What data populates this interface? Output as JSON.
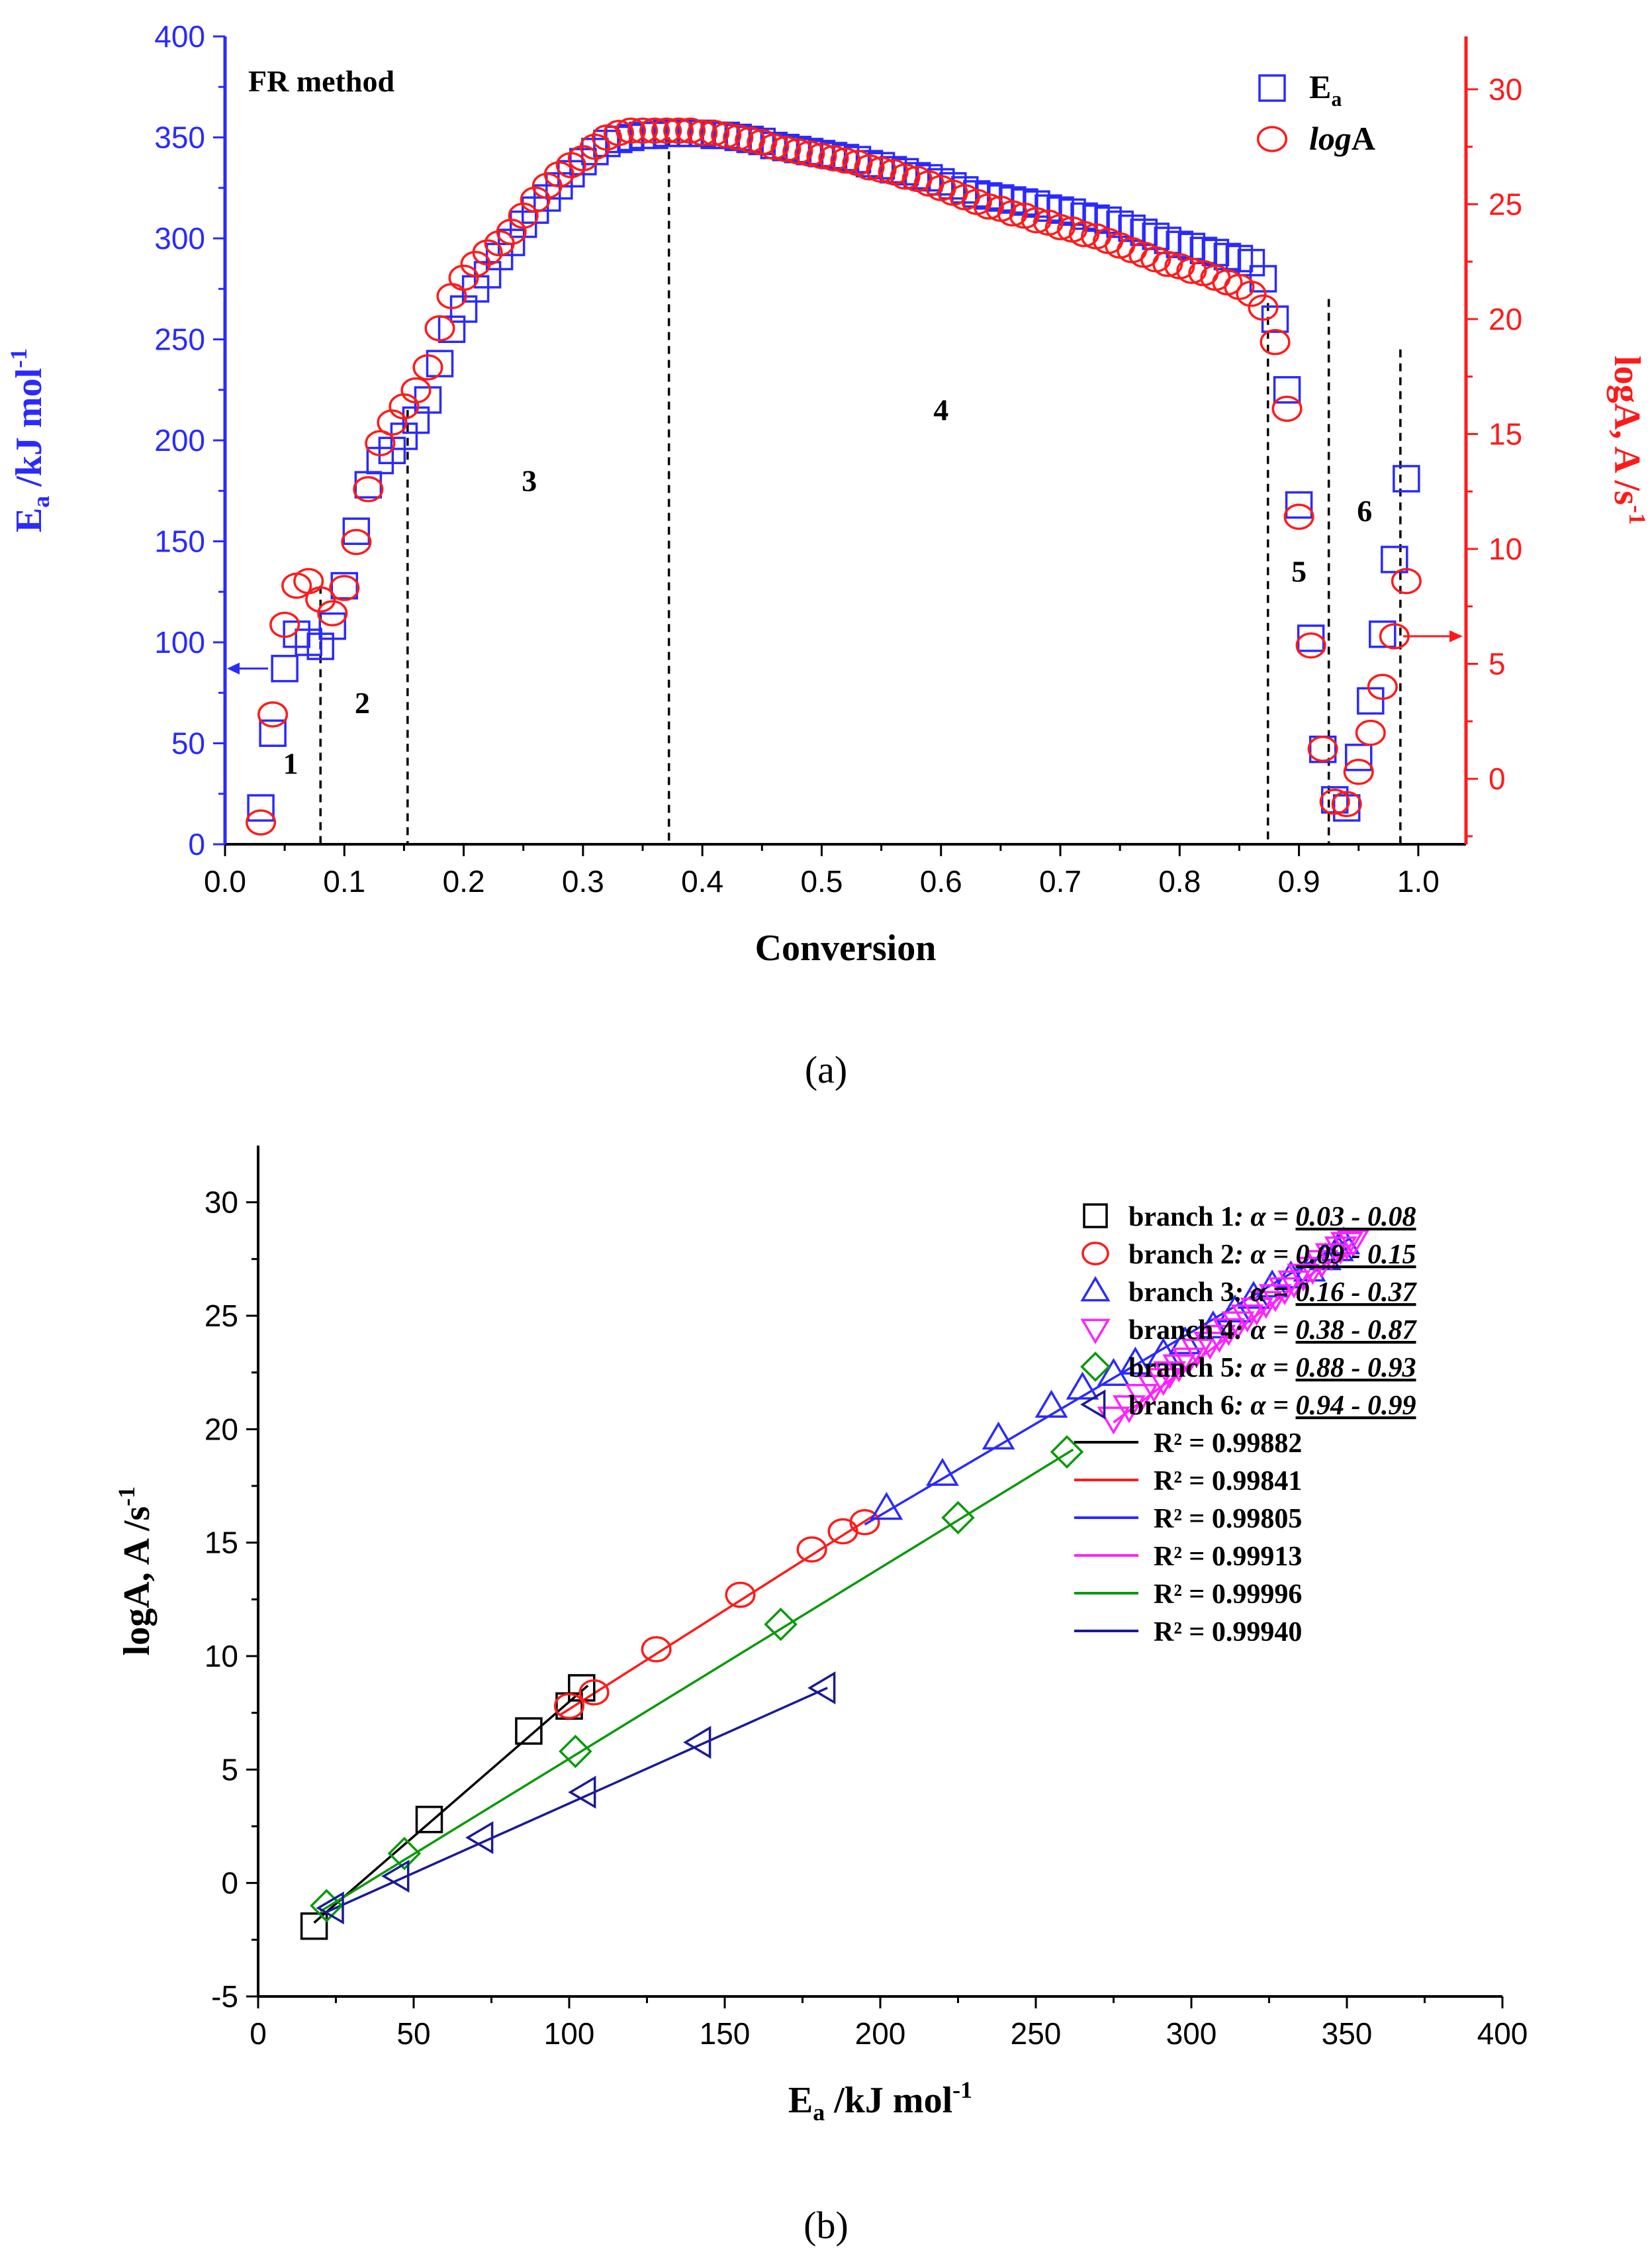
{
  "colors": {
    "blue": "#2a2aff",
    "red": "#ff1a1a",
    "black": "#000000",
    "magenta": "#ff22ff",
    "green": "#0a9a0a",
    "navy": "#1a1a99"
  },
  "captions": {
    "a": "(a)",
    "b": "(b)"
  },
  "chart_data": [
    {
      "type": "scatter",
      "panel": "a",
      "title": "FR method",
      "xlabel": "Conversion",
      "ylabel_left": {
        "main": "E",
        "sub": "a",
        "rest": " /kJ mol",
        "sup": "-1"
      },
      "ylabel_right": {
        "main": "logA, A /s",
        "sup": "-1"
      },
      "xlim": [
        0.0,
        1.04
      ],
      "ylim_left": [
        0,
        400
      ],
      "ylim_right": [
        -2.85,
        32.3
      ],
      "xticks": [
        0.0,
        0.1,
        0.2,
        0.3,
        0.4,
        0.5,
        0.6,
        0.7,
        0.8,
        0.9,
        1.0
      ],
      "xtick_labels": [
        "0.0",
        "0.1",
        "0.2",
        "0.3",
        "0.4",
        "0.5",
        "0.6",
        "0.7",
        "0.8",
        "0.9",
        "1.0"
      ],
      "yticks_left": [
        0,
        50,
        100,
        150,
        200,
        250,
        300,
        350,
        400
      ],
      "ytick_labels_left": [
        "0",
        "50",
        "100",
        "150",
        "200",
        "250",
        "300",
        "350",
        "400"
      ],
      "yticks_right": [
        0,
        5,
        10,
        15,
        20,
        25,
        30
      ],
      "ytick_labels_right": [
        "0",
        "5",
        "10",
        "15",
        "20",
        "25",
        "30"
      ],
      "legend": [
        {
          "symbol": "square",
          "color": "#2a2aff",
          "main": "E",
          "sub": "a",
          "italic": false
        },
        {
          "symbol": "circle",
          "color": "#ff1a1a",
          "italic_part": "log",
          "main": "A",
          "italic": true
        }
      ],
      "vlines": [
        0.08,
        0.153,
        0.372,
        0.874,
        0.925,
        0.985
      ],
      "vline_tops": [
        128,
        215,
        350,
        268,
        270,
        245
      ],
      "region_labels": [
        {
          "text": "1",
          "x": 0.055,
          "y": 35
        },
        {
          "text": "2",
          "x": 0.115,
          "y": 65
        },
        {
          "text": "3",
          "x": 0.255,
          "y": 175
        },
        {
          "text": "4",
          "x": 0.6,
          "y": 210
        },
        {
          "text": "5",
          "x": 0.9,
          "y": 130
        },
        {
          "text": "6",
          "x": 0.955,
          "y": 160
        }
      ],
      "series": [
        {
          "name": "Ea",
          "axis": "left",
          "marker": "square",
          "x": [
            0.03,
            0.04,
            0.05,
            0.06,
            0.07,
            0.08,
            0.09,
            0.1,
            0.11,
            0.12,
            0.13,
            0.14,
            0.15,
            0.16,
            0.17,
            0.18,
            0.19,
            0.2,
            0.21,
            0.22,
            0.23,
            0.24,
            0.25,
            0.26,
            0.27,
            0.28,
            0.29,
            0.3,
            0.31,
            0.32,
            0.33,
            0.34,
            0.35,
            0.36,
            0.37,
            0.38,
            0.39,
            0.4,
            0.41,
            0.42,
            0.43,
            0.44,
            0.45,
            0.46,
            0.47,
            0.48,
            0.49,
            0.5,
            0.51,
            0.52,
            0.53,
            0.54,
            0.55,
            0.56,
            0.57,
            0.58,
            0.59,
            0.6,
            0.61,
            0.62,
            0.63,
            0.64,
            0.65,
            0.66,
            0.67,
            0.68,
            0.69,
            0.7,
            0.71,
            0.72,
            0.73,
            0.74,
            0.75,
            0.76,
            0.77,
            0.78,
            0.79,
            0.8,
            0.81,
            0.82,
            0.83,
            0.84,
            0.85,
            0.86,
            0.87,
            0.88,
            0.89,
            0.9,
            0.91,
            0.92,
            0.93,
            0.94,
            0.95,
            0.96,
            0.97,
            0.98,
            0.99
          ],
          "y": [
            18,
            55,
            87,
            104,
            100,
            98,
            108,
            128,
            155,
            178,
            190,
            195,
            202,
            210,
            220,
            238,
            255,
            265,
            275,
            282,
            291,
            298,
            307,
            314,
            320,
            326,
            332,
            338,
            343,
            347,
            349,
            350,
            351,
            351,
            352,
            352,
            352,
            352,
            351,
            351,
            350,
            349,
            348,
            346,
            345,
            344,
            343,
            342,
            341,
            340,
            339,
            337,
            336,
            334,
            333,
            331,
            330,
            328,
            326,
            324,
            322,
            321,
            320,
            319,
            318,
            317,
            315,
            314,
            313,
            311,
            310,
            309,
            307,
            305,
            303,
            301,
            299,
            297,
            296,
            294,
            293,
            291,
            290,
            288,
            280,
            260,
            225,
            168,
            102,
            47,
            22,
            18,
            43,
            71,
            104,
            141,
            181
          ]
        },
        {
          "name": "logA",
          "axis": "right",
          "marker": "circle",
          "x": [
            0.03,
            0.04,
            0.05,
            0.06,
            0.07,
            0.08,
            0.09,
            0.1,
            0.11,
            0.12,
            0.13,
            0.14,
            0.15,
            0.16,
            0.17,
            0.18,
            0.19,
            0.2,
            0.21,
            0.22,
            0.23,
            0.24,
            0.25,
            0.26,
            0.27,
            0.28,
            0.29,
            0.3,
            0.31,
            0.32,
            0.33,
            0.34,
            0.35,
            0.36,
            0.37,
            0.38,
            0.39,
            0.4,
            0.41,
            0.42,
            0.43,
            0.44,
            0.45,
            0.46,
            0.47,
            0.48,
            0.49,
            0.5,
            0.51,
            0.52,
            0.53,
            0.54,
            0.55,
            0.56,
            0.57,
            0.58,
            0.59,
            0.6,
            0.61,
            0.62,
            0.63,
            0.64,
            0.65,
            0.66,
            0.67,
            0.68,
            0.69,
            0.7,
            0.71,
            0.72,
            0.73,
            0.74,
            0.75,
            0.76,
            0.77,
            0.78,
            0.79,
            0.8,
            0.81,
            0.82,
            0.83,
            0.84,
            0.85,
            0.86,
            0.87,
            0.88,
            0.89,
            0.9,
            0.91,
            0.92,
            0.93,
            0.94,
            0.95,
            0.96,
            0.97,
            0.98,
            0.99
          ],
          "y": [
            -1.9,
            2.8,
            6.7,
            8.4,
            8.6,
            7.8,
            7.2,
            8.3,
            10.3,
            12.6,
            14.6,
            15.5,
            16.2,
            16.9,
            17.9,
            19.6,
            21.0,
            21.8,
            22.4,
            22.9,
            23.3,
            23.8,
            24.5,
            25.2,
            25.8,
            26.3,
            26.7,
            27.0,
            27.5,
            27.9,
            28.1,
            28.2,
            28.2,
            28.2,
            28.2,
            28.2,
            28.2,
            28.1,
            28.1,
            28.0,
            27.9,
            27.8,
            27.7,
            27.5,
            27.4,
            27.3,
            27.2,
            27.1,
            27.0,
            26.9,
            26.8,
            26.6,
            26.5,
            26.4,
            26.2,
            26.1,
            25.9,
            25.7,
            25.5,
            25.3,
            25.1,
            24.9,
            24.8,
            24.6,
            24.5,
            24.3,
            24.2,
            24.0,
            23.9,
            23.7,
            23.6,
            23.4,
            23.2,
            23.0,
            22.8,
            22.6,
            22.4,
            22.3,
            22.1,
            22.0,
            21.8,
            21.6,
            21.4,
            21.1,
            20.5,
            19.0,
            16.1,
            11.4,
            5.8,
            1.3,
            -1.0,
            -1.1,
            0.3,
            2.0,
            4.0,
            6.2,
            8.6
          ]
        }
      ]
    },
    {
      "type": "scatter",
      "panel": "b",
      "title": "",
      "xlabel": {
        "main": "E",
        "sub": "a",
        "rest": " /kJ mol",
        "sup": "-1"
      },
      "ylabel": {
        "main": "logA, A /s",
        "sup": "-1"
      },
      "xlim": [
        0,
        400
      ],
      "ylim": [
        -5,
        32.5
      ],
      "xticks": [
        0,
        50,
        100,
        150,
        200,
        250,
        300,
        350,
        400
      ],
      "xtick_labels": [
        "0",
        "50",
        "100",
        "150",
        "200",
        "250",
        "300",
        "350",
        "400"
      ],
      "yticks": [
        -5,
        0,
        5,
        10,
        15,
        20,
        25,
        30
      ],
      "ytick_labels": [
        "-5",
        "0",
        "5",
        "10",
        "15",
        "20",
        "25",
        "30"
      ],
      "series": [
        {
          "name": "branch 1",
          "label": "branch 1",
          "range": "0.03 - 0.08",
          "marker": "square",
          "color": "#000000",
          "x": [
            18,
            55,
            87,
            100,
            104
          ],
          "y": [
            -1.9,
            2.8,
            6.7,
            7.8,
            8.6
          ],
          "fit": {
            "r2": "R² = 0.99882",
            "x": [
              18,
              106
            ],
            "y": [
              -1.75,
              8.7
            ]
          }
        },
        {
          "name": "branch 2",
          "label": "branch 2",
          "range": "0.09 - 0.15",
          "marker": "circle",
          "color": "#ff1a1a",
          "x": [
            100,
            108,
            128,
            155,
            178,
            188,
            195
          ],
          "y": [
            7.8,
            8.4,
            10.3,
            12.7,
            14.7,
            15.5,
            15.9
          ],
          "fit": {
            "r2": "R² = 0.99841",
            "x": [
              97,
              198
            ],
            "y": [
              7.4,
              16.2
            ]
          }
        },
        {
          "name": "branch 3",
          "label": "branch 3",
          "range": "0.16 - 0.37",
          "marker": "triangle-up",
          "color": "#2a2aff",
          "x": [
            202,
            220,
            238,
            255,
            265,
            275,
            282,
            291,
            298,
            307,
            314,
            320,
            326,
            332,
            338,
            343,
            347,
            349
          ],
          "y": [
            16.5,
            18.0,
            19.6,
            21.0,
            21.8,
            22.4,
            22.9,
            23.3,
            23.8,
            24.5,
            25.2,
            25.8,
            26.3,
            26.7,
            27.0,
            27.5,
            27.9,
            28.2
          ],
          "fit": {
            "r2": "R² = 0.99805",
            "x": [
              195,
              351
            ],
            "y": [
              15.8,
              28.4
            ]
          }
        },
        {
          "name": "branch 4",
          "label": "branch 4",
          "range": "0.38 - 0.87",
          "marker": "triangle-down",
          "color": "#ff22ff",
          "x": [
            275,
            280,
            284,
            288,
            291,
            293,
            296,
            299,
            302,
            306,
            309,
            312,
            315,
            318,
            321,
            324,
            327,
            330,
            333,
            336,
            339,
            342,
            345,
            348,
            350,
            352
          ],
          "y": [
            20.5,
            21.0,
            21.5,
            21.9,
            22.2,
            22.5,
            22.8,
            23.1,
            23.5,
            23.8,
            24.1,
            24.4,
            24.7,
            25.0,
            25.3,
            25.6,
            25.9,
            26.2,
            26.5,
            26.8,
            27.1,
            27.4,
            27.7,
            28.0,
            28.2,
            28.3
          ],
          "fit": {
            "r2": "R² = 0.99913",
            "x": [
              275,
              352
            ],
            "y": [
              20.3,
              28.2
            ]
          }
        },
        {
          "name": "branch 5",
          "label": "branch 5",
          "range": "0.88 - 0.93",
          "marker": "diamond",
          "color": "#0a9a0a",
          "x": [
            22,
            47,
            102,
            168,
            225,
            260
          ],
          "y": [
            -1.0,
            1.3,
            5.8,
            11.4,
            16.1,
            19.0
          ],
          "fit": {
            "r2": "R² = 0.99996",
            "x": [
              20,
              262
            ],
            "y": [
              -1.25,
              19.1
            ]
          }
        },
        {
          "name": "branch 6",
          "label": "branch 6",
          "range": "0.94 - 0.99",
          "marker": "triangle-left",
          "color": "#1a1a99",
          "x": [
            24,
            45,
            72,
            105,
            142,
            182
          ],
          "y": [
            -1.1,
            0.3,
            2.0,
            4.0,
            6.2,
            8.6
          ],
          "fit": {
            "r2": "R² = 0.99940",
            "x": [
              20,
              183
            ],
            "y": [
              -1.4,
              8.6
            ]
          }
        }
      ],
      "legend_prefix": "α = "
    }
  ]
}
